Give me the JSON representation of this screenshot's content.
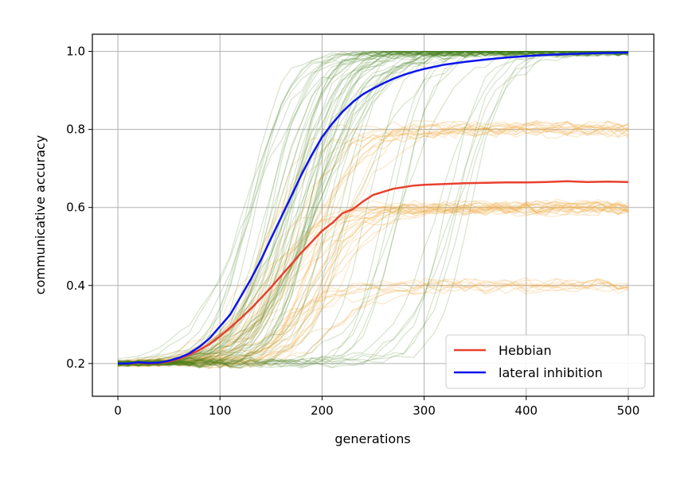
{
  "chart_data": {
    "type": "line",
    "xlabel": "generations",
    "ylabel": "communicative accuracy",
    "xlim": [
      -25,
      525
    ],
    "ylim": [
      0.116,
      1.044
    ],
    "xticks": [
      0,
      100,
      200,
      300,
      400,
      500
    ],
    "xtick_labels": [
      "0",
      "100",
      "200",
      "300",
      "400",
      "500"
    ],
    "yticks": [
      0.2,
      0.4,
      0.6,
      0.8,
      1.0
    ],
    "ytick_labels": [
      "0.2",
      "0.4",
      "0.6",
      "0.8",
      "1.0"
    ],
    "grid": true,
    "legend_position": "lower-right",
    "series": [
      {
        "name": "Hebbian",
        "color": "#e8412f",
        "x": [
          0,
          10,
          20,
          30,
          40,
          50,
          60,
          70,
          80,
          90,
          100,
          110,
          120,
          130,
          140,
          150,
          160,
          170,
          180,
          190,
          200,
          210,
          220,
          230,
          240,
          250,
          260,
          270,
          280,
          290,
          300,
          320,
          340,
          360,
          380,
          400,
          420,
          440,
          460,
          480,
          500
        ],
        "y": [
          0.2,
          0.2,
          0.202,
          0.2,
          0.201,
          0.205,
          0.212,
          0.222,
          0.235,
          0.25,
          0.27,
          0.292,
          0.315,
          0.34,
          0.367,
          0.395,
          0.425,
          0.455,
          0.485,
          0.512,
          0.54,
          0.56,
          0.585,
          0.595,
          0.615,
          0.632,
          0.64,
          0.648,
          0.652,
          0.656,
          0.658,
          0.66,
          0.662,
          0.663,
          0.664,
          0.664,
          0.665,
          0.667,
          0.665,
          0.666,
          0.665
        ]
      },
      {
        "name": "lateral inhibition",
        "color": "#0a14ee",
        "x": [
          0,
          10,
          20,
          30,
          40,
          50,
          60,
          70,
          80,
          90,
          100,
          110,
          120,
          130,
          140,
          150,
          160,
          170,
          180,
          190,
          200,
          210,
          220,
          230,
          240,
          250,
          260,
          270,
          280,
          290,
          300,
          320,
          340,
          360,
          380,
          400,
          420,
          440,
          460,
          480,
          500
        ],
        "y": [
          0.2,
          0.2,
          0.203,
          0.201,
          0.202,
          0.207,
          0.215,
          0.226,
          0.243,
          0.265,
          0.295,
          0.325,
          0.37,
          0.415,
          0.465,
          0.52,
          0.575,
          0.63,
          0.685,
          0.735,
          0.78,
          0.815,
          0.845,
          0.87,
          0.89,
          0.905,
          0.918,
          0.93,
          0.94,
          0.948,
          0.955,
          0.966,
          0.973,
          0.979,
          0.984,
          0.988,
          0.991,
          0.993,
          0.995,
          0.996,
          0.997
        ]
      }
    ],
    "background_runs": {
      "green": {
        "color": "#3f7f1a",
        "count": 60,
        "plateau": 1.0
      },
      "orange": {
        "color": "#f0b050",
        "groups": [
          {
            "plateau": 0.8,
            "count": 16
          },
          {
            "plateau": 0.6,
            "count": 22
          },
          {
            "plateau": 0.4,
            "count": 10
          }
        ]
      }
    }
  }
}
